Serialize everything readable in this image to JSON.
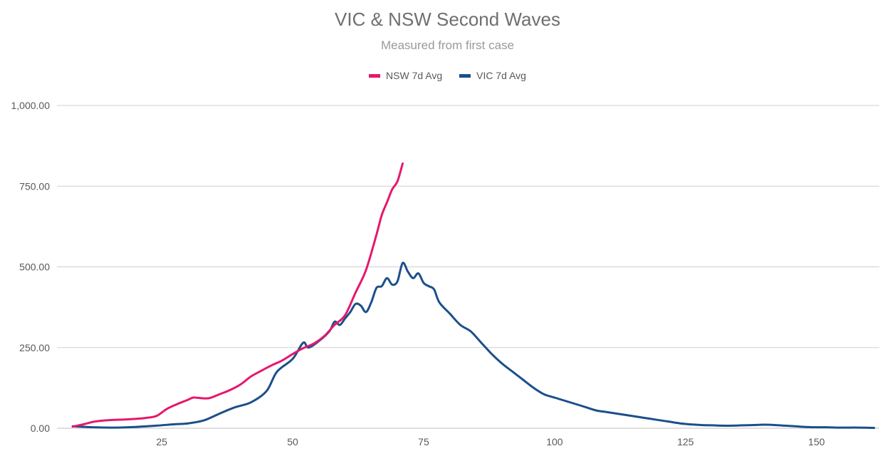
{
  "chart_data": {
    "type": "line",
    "title": "VIC & NSW Second Waves",
    "subtitle": "Measured from first case",
    "xlabel": "",
    "ylabel": "",
    "xlim": [
      5,
      162
    ],
    "ylim": [
      0,
      1000
    ],
    "x_ticks": [
      25,
      50,
      75,
      100,
      125,
      150
    ],
    "y_ticks": [
      0,
      250,
      500,
      750,
      1000
    ],
    "y_tick_labels": [
      "0.00",
      "250.00",
      "500.00",
      "750.00",
      "1,000.00"
    ],
    "grid": "horizontal",
    "legend_position": "top",
    "series": [
      {
        "name": "NSW 7d Avg",
        "color": "#e6176d",
        "x": [
          8,
          10,
          12,
          14,
          16,
          18,
          20,
          22,
          24,
          26,
          28,
          30,
          31,
          32,
          34,
          36,
          38,
          40,
          42,
          44,
          46,
          48,
          50,
          52,
          54,
          56,
          58,
          60,
          62,
          64,
          66,
          67,
          68,
          69,
          70,
          71
        ],
        "y": [
          5,
          12,
          20,
          24,
          26,
          27,
          29,
          32,
          38,
          60,
          75,
          88,
          95,
          94,
          93,
          105,
          118,
          135,
          160,
          178,
          195,
          210,
          230,
          248,
          262,
          285,
          320,
          350,
          420,
          490,
          600,
          660,
          700,
          740,
          765,
          820
        ]
      },
      {
        "name": "VIC 7d Avg",
        "color": "#1b4f8a",
        "x": [
          8,
          12,
          16,
          20,
          24,
          27,
          30,
          33,
          36,
          39,
          42,
          45,
          47,
          50,
          52,
          53,
          55,
          57,
          58,
          59,
          60,
          61,
          62,
          63,
          64,
          65,
          66,
          67,
          68,
          69,
          70,
          71,
          72,
          73,
          74,
          75,
          76,
          77,
          78,
          80,
          82,
          84,
          86,
          88,
          90,
          92,
          94,
          96,
          98,
          100,
          102,
          104,
          106,
          108,
          110,
          112,
          114,
          116,
          118,
          120,
          122,
          124,
          126,
          128,
          130,
          132,
          134,
          136,
          138,
          140,
          142,
          144,
          146,
          148,
          150,
          152,
          154,
          156,
          158,
          161
        ],
        "y": [
          6,
          3,
          2,
          4,
          8,
          12,
          15,
          24,
          45,
          65,
          80,
          115,
          175,
          215,
          265,
          250,
          270,
          300,
          330,
          320,
          340,
          360,
          385,
          380,
          360,
          390,
          435,
          440,
          465,
          445,
          455,
          512,
          485,
          465,
          480,
          450,
          440,
          430,
          390,
          355,
          320,
          300,
          265,
          230,
          200,
          175,
          150,
          125,
          105,
          95,
          85,
          75,
          65,
          55,
          50,
          45,
          40,
          35,
          30,
          25,
          20,
          15,
          12,
          10,
          9,
          8,
          8,
          9,
          10,
          11,
          10,
          8,
          6,
          4,
          3,
          3,
          2,
          2,
          2,
          1
        ]
      }
    ]
  }
}
